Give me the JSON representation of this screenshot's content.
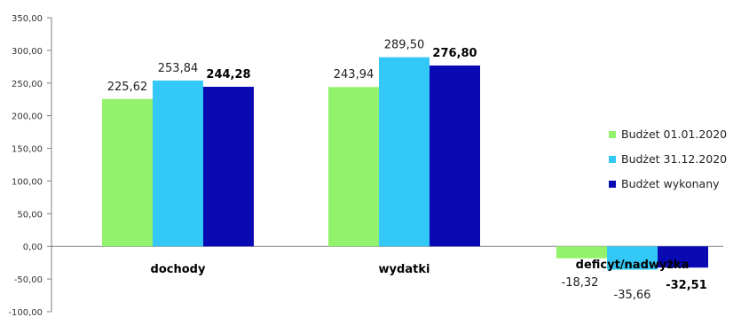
{
  "chart_data": {
    "type": "bar",
    "categories": [
      "dochody",
      "wydatki",
      "deficyt/nadwyżka"
    ],
    "series": [
      {
        "name": "Budżet 01.01.2020",
        "color": "#93f26b",
        "values": [
          225.62,
          243.94,
          -18.32
        ],
        "labels": [
          "225,62",
          "243,94",
          "-18,32"
        ],
        "bold_labels": false
      },
      {
        "name": "Budżet 31.12.2020",
        "color": "#33c8f5",
        "values": [
          253.84,
          289.5,
          -35.66
        ],
        "labels": [
          "253,84",
          "289,50",
          "-35,66"
        ],
        "bold_labels": false
      },
      {
        "name": "Budżet wykonany",
        "color": "#0a0ab4",
        "values": [
          244.28,
          276.8,
          -32.51
        ],
        "labels": [
          "244,28",
          "276,80",
          "-32,51"
        ],
        "bold_labels": true
      }
    ],
    "y_ticks": [
      "350,00",
      "300,00",
      "250,00",
      "200,00",
      "150,00",
      "100,00",
      "50,00",
      "0,00",
      "-50,00",
      "-100,00"
    ],
    "y_tick_values": [
      350,
      300,
      250,
      200,
      150,
      100,
      50,
      0,
      -50,
      -100
    ],
    "ylim": [
      -100,
      350
    ],
    "grid": false,
    "legend_position": "right"
  }
}
